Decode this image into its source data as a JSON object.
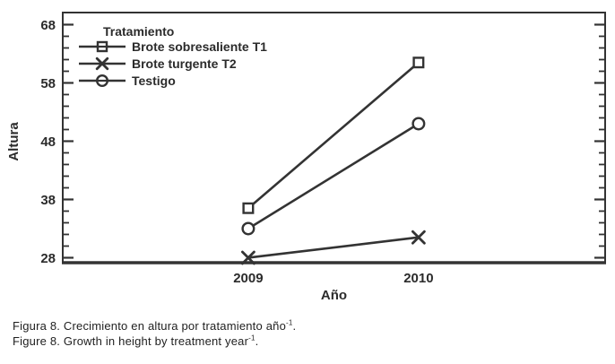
{
  "colors": {
    "ink": "#333333",
    "text_ink": "#2b2b2b",
    "background": "#ffffff",
    "marker_fill": "#ffffff"
  },
  "chart_data": {
    "type": "line",
    "title": "",
    "xlabel": "Año",
    "ylabel": "Altura",
    "categories": [
      "2009",
      "2010"
    ],
    "ylim": [
      27,
      70
    ],
    "yticks": [
      28,
      38,
      48,
      58,
      68
    ],
    "y_minor_step": 2,
    "grid": false,
    "legend": {
      "title": "Tratamiento",
      "position": "top-left-inside"
    },
    "series": [
      {
        "name": "Brote sobresaliente T1",
        "marker": "square",
        "values": [
          36.5,
          61.5
        ]
      },
      {
        "name": "Brote turgente T2",
        "marker": "x",
        "values": [
          28,
          31.5
        ]
      },
      {
        "name": "Testigo",
        "marker": "circle",
        "values": [
          33,
          51
        ]
      }
    ]
  },
  "caption": {
    "line1": {
      "text": "Figura 8. Crecimiento en altura por tratamiento año",
      "sup": "-1",
      "tail": "."
    },
    "line2": {
      "text": "Figure 8. Growth in height by treatment year",
      "sup": "-1",
      "tail": "."
    }
  }
}
